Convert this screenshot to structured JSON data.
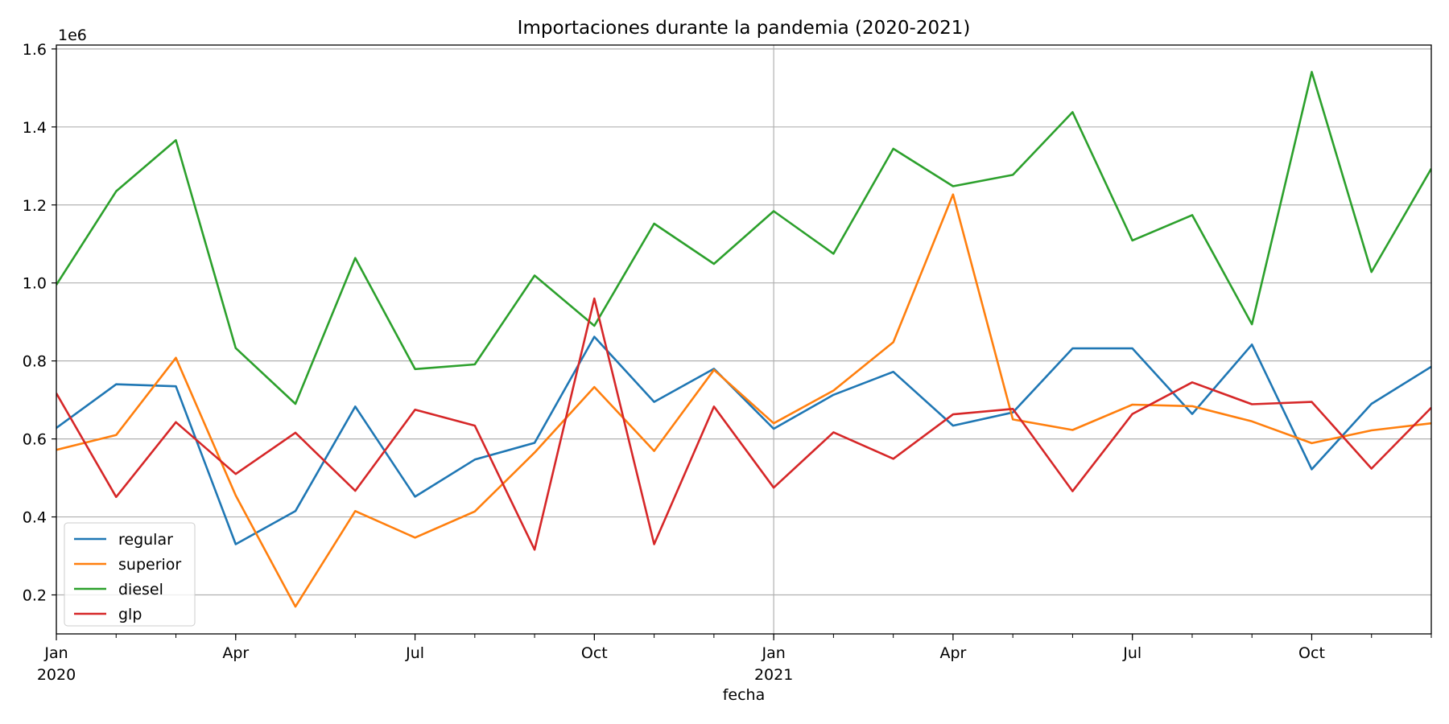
{
  "chart_data": {
    "type": "line",
    "title": "Importaciones durante la pandemia (2020-2021)",
    "xlabel": "fecha",
    "ylabel": "",
    "y_offset_text": "1e6",
    "ylim": [
      0.1,
      1.61
    ],
    "y_ticks": [
      0.2,
      0.4,
      0.6,
      0.8,
      1.0,
      1.2,
      1.4,
      1.6
    ],
    "y_tick_labels": [
      "0.2",
      "0.4",
      "0.6",
      "0.8",
      "1.0",
      "1.2",
      "1.4",
      "1.6"
    ],
    "x": [
      "2020-01",
      "2020-02",
      "2020-03",
      "2020-04",
      "2020-05",
      "2020-06",
      "2020-07",
      "2020-08",
      "2020-09",
      "2020-10",
      "2020-11",
      "2020-12",
      "2021-01",
      "2021-02",
      "2021-03",
      "2021-04",
      "2021-05",
      "2021-06",
      "2021-07",
      "2021-08",
      "2021-09",
      "2021-10",
      "2021-11",
      "2021-12"
    ],
    "x_tick_labels": [
      {
        "x": "2020-01",
        "line1": "Jan",
        "line2": "2020"
      },
      {
        "x": "2020-04",
        "line1": "Apr",
        "line2": ""
      },
      {
        "x": "2020-07",
        "line1": "Jul",
        "line2": ""
      },
      {
        "x": "2020-10",
        "line1": "Oct",
        "line2": ""
      },
      {
        "x": "2021-01",
        "line1": "Jan",
        "line2": "2021"
      },
      {
        "x": "2021-04",
        "line1": "Apr",
        "line2": ""
      },
      {
        "x": "2021-07",
        "line1": "Jul",
        "line2": ""
      },
      {
        "x": "2021-10",
        "line1": "Oct",
        "line2": ""
      }
    ],
    "grid": true,
    "legend_position": "lower-left",
    "series": [
      {
        "name": "regular",
        "color": "#1f77b4",
        "values": [
          0.628,
          0.74,
          0.735,
          0.33,
          0.415,
          0.683,
          0.452,
          0.547,
          0.59,
          0.862,
          0.695,
          0.78,
          0.626,
          0.713,
          0.772,
          0.634,
          0.668,
          0.832,
          0.832,
          0.664,
          0.842,
          0.522,
          0.69,
          0.785
        ]
      },
      {
        "name": "superior",
        "color": "#ff7f0e",
        "values": [
          0.572,
          0.61,
          0.808,
          0.455,
          0.17,
          0.415,
          0.347,
          0.414,
          0.565,
          0.733,
          0.569,
          0.777,
          0.64,
          0.724,
          0.848,
          1.227,
          0.65,
          0.623,
          0.688,
          0.684,
          0.645,
          0.589,
          0.622,
          0.64
        ]
      },
      {
        "name": "diesel",
        "color": "#2ca02c",
        "values": [
          0.995,
          1.235,
          1.366,
          0.833,
          0.69,
          1.064,
          0.779,
          0.791,
          1.019,
          0.89,
          1.152,
          1.049,
          1.184,
          1.075,
          1.344,
          1.248,
          1.277,
          1.438,
          1.109,
          1.174,
          0.894,
          1.541,
          1.028,
          1.293
        ]
      },
      {
        "name": "glp",
        "color": "#d62728",
        "values": [
          0.717,
          0.451,
          0.643,
          0.51,
          0.616,
          0.467,
          0.675,
          0.634,
          0.316,
          0.96,
          0.33,
          0.683,
          0.475,
          0.617,
          0.549,
          0.663,
          0.677,
          0.466,
          0.664,
          0.745,
          0.689,
          0.695,
          0.524,
          0.68
        ]
      }
    ]
  }
}
